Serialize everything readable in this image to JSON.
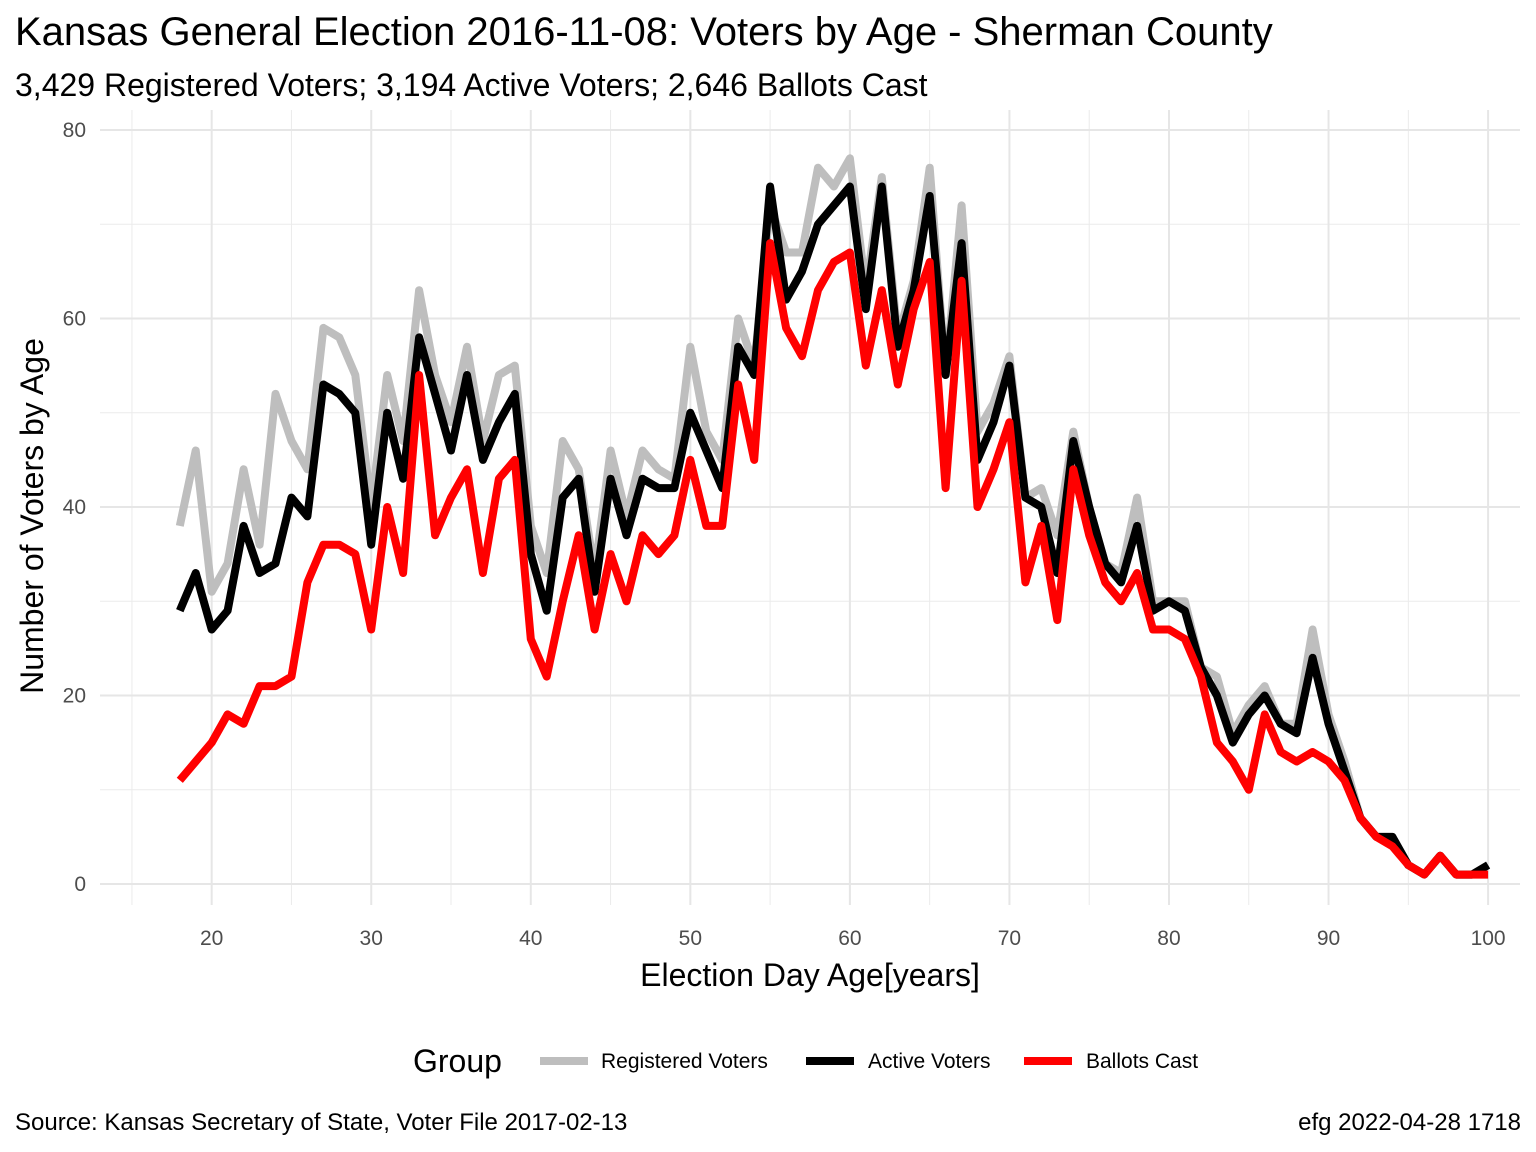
{
  "chart_data": {
    "type": "line",
    "title": "Kansas General Election 2016-11-08:  Voters by Age - Sherman County",
    "subtitle": "3,429 Registered Voters; 3,194 Active Voters; 2,646 Ballots Cast",
    "xlabel": "Election Day Age[years]",
    "ylabel": "Number of Voters by Age",
    "xlim": [
      13,
      102
    ],
    "ylim": [
      0,
      80
    ],
    "x_ticks": [
      20,
      30,
      40,
      50,
      60,
      70,
      80,
      90,
      100
    ],
    "y_ticks": [
      0,
      20,
      40,
      60,
      80
    ],
    "grid": true,
    "legend": {
      "title": "Group",
      "position": "bottom"
    },
    "x": [
      18,
      19,
      20,
      21,
      22,
      23,
      24,
      25,
      26,
      27,
      28,
      29,
      30,
      31,
      32,
      33,
      34,
      35,
      36,
      37,
      38,
      39,
      40,
      41,
      42,
      43,
      44,
      45,
      46,
      47,
      48,
      49,
      50,
      51,
      52,
      53,
      54,
      55,
      56,
      57,
      58,
      59,
      60,
      61,
      62,
      63,
      64,
      65,
      66,
      67,
      68,
      69,
      70,
      71,
      72,
      73,
      74,
      75,
      76,
      77,
      78,
      79,
      80,
      81,
      82,
      83,
      84,
      85,
      86,
      87,
      88,
      89,
      90,
      91,
      92,
      93,
      94,
      95,
      96,
      97,
      98,
      99,
      100
    ],
    "series": [
      {
        "name": "Registered Voters",
        "color": "#bebebe",
        "values": [
          38,
          46,
          31,
          34,
          44,
          36,
          52,
          47,
          44,
          59,
          58,
          54,
          40,
          54,
          47,
          63,
          54,
          49,
          57,
          47,
          54,
          55,
          38,
          33,
          47,
          44,
          33,
          46,
          39,
          46,
          44,
          43,
          57,
          48,
          45,
          60,
          55,
          72,
          67,
          67,
          76,
          74,
          77,
          63,
          75,
          58,
          64,
          76,
          54,
          72,
          48,
          51,
          56,
          41,
          42,
          37,
          48,
          40,
          34,
          33,
          41,
          30,
          30,
          30,
          23,
          22,
          16,
          19,
          21,
          17,
          17,
          27,
          18,
          13,
          7,
          5,
          5,
          2,
          1,
          3,
          1,
          1,
          2
        ]
      },
      {
        "name": "Active Voters",
        "color": "#000000",
        "values": [
          29,
          33,
          27,
          29,
          38,
          33,
          34,
          41,
          39,
          53,
          52,
          50,
          36,
          50,
          43,
          58,
          52,
          46,
          54,
          45,
          49,
          52,
          35,
          29,
          41,
          43,
          31,
          43,
          37,
          43,
          42,
          42,
          50,
          46,
          42,
          57,
          54,
          74,
          62,
          65,
          70,
          72,
          74,
          61,
          74,
          57,
          63,
          73,
          54,
          68,
          45,
          49,
          55,
          41,
          40,
          33,
          47,
          40,
          34,
          32,
          38,
          29,
          30,
          29,
          23,
          20,
          15,
          18,
          20,
          17,
          16,
          24,
          17,
          12,
          7,
          5,
          5,
          2,
          1,
          3,
          1,
          1,
          2
        ]
      },
      {
        "name": "Ballots Cast",
        "color": "#ff0000",
        "values": [
          11,
          13,
          15,
          18,
          17,
          21,
          21,
          22,
          32,
          36,
          36,
          35,
          27,
          40,
          33,
          54,
          37,
          41,
          44,
          33,
          43,
          45,
          26,
          22,
          30,
          37,
          27,
          35,
          30,
          37,
          35,
          37,
          45,
          38,
          38,
          53,
          45,
          68,
          59,
          56,
          63,
          66,
          67,
          55,
          63,
          53,
          61,
          66,
          42,
          64,
          40,
          44,
          49,
          32,
          38,
          28,
          44,
          37,
          32,
          30,
          33,
          27,
          27,
          26,
          22,
          15,
          13,
          10,
          18,
          14,
          13,
          14,
          13,
          11,
          7,
          5,
          4,
          2,
          1,
          3,
          1,
          1,
          1
        ]
      }
    ]
  },
  "caption": {
    "source": "Source:  Kansas Secretary of State, Voter File  2017-02-13",
    "credit": "efg 2022-04-28 1718"
  }
}
